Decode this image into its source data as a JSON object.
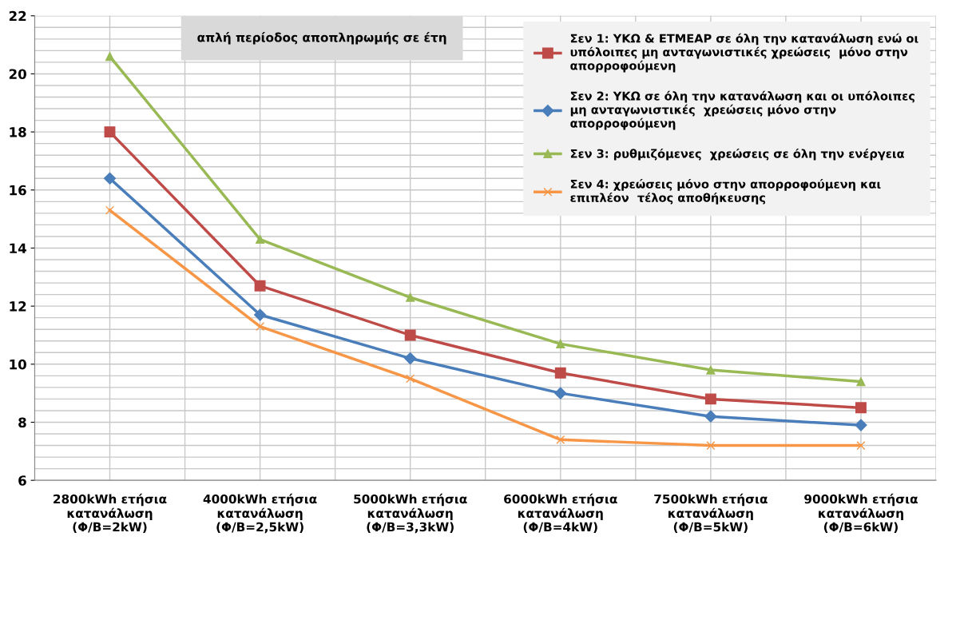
{
  "chart_data": {
    "type": "line",
    "title": "απλή περίοδος αποπληρωμής σε έτη",
    "categories": [
      "2800kWh ετήσια\nκατανάλωση\n(Φ/Β=2kW)",
      "4000kWh ετήσια\nκατανάλωση\n(Φ/Β=2,5kW)",
      "5000kWh ετήσια\nκατανάλωση\n(Φ/Β=3,3kW)",
      "6000kWh ετήσια\nκατανάλωση\n(Φ/Β=4kW)",
      "7500kWh ετήσια\nκατανάλωση\n(Φ/Β=5kW)",
      "9000kWh ετήσια\nκατανάλωση\n(Φ/Β=6kW)"
    ],
    "series": [
      {
        "name": "Σεν 1: ΥΚΩ & ΕΤΜΕΑΡ σε όλη την κατανάλωση ενώ οι\nυπόλοιπες μη ανταγωνιστικές χρεώσεις  μόνο στην\nαπορροφούμενη",
        "color": "#be4b48",
        "marker": "square",
        "values": [
          18.0,
          12.7,
          11.0,
          9.7,
          8.8,
          8.5
        ]
      },
      {
        "name": "Σεν 2: ΥΚΩ σε όλη την κατανάλωση και οι υπόλοιπες\nμη ανταγωνιστικές  χρεώσεις μόνο στην\nαπορροφούμενη",
        "color": "#4a7ebb",
        "marker": "diamond",
        "values": [
          16.4,
          11.7,
          10.2,
          9.0,
          8.2,
          7.9
        ]
      },
      {
        "name": "Σεν 3: ρυθμιζόμενες  χρεώσεις σε όλη την ενέργεια",
        "color": "#98b954",
        "marker": "triangle",
        "values": [
          20.6,
          14.3,
          12.3,
          10.7,
          9.8,
          9.4
        ]
      },
      {
        "name": "Σεν 4: χρεώσεις μόνο στην απορροφούμενη και\nεπιπλέον  τέλος αποθήκευσης",
        "color": "#f79646",
        "marker": "cross",
        "values": [
          15.3,
          11.3,
          9.5,
          7.4,
          7.2,
          7.2
        ]
      }
    ],
    "ylim": [
      6,
      22
    ],
    "yticks": [
      6,
      8,
      10,
      12,
      14,
      16,
      18,
      20,
      22
    ],
    "grid": true,
    "legend": "top right",
    "line_style": "solid"
  }
}
